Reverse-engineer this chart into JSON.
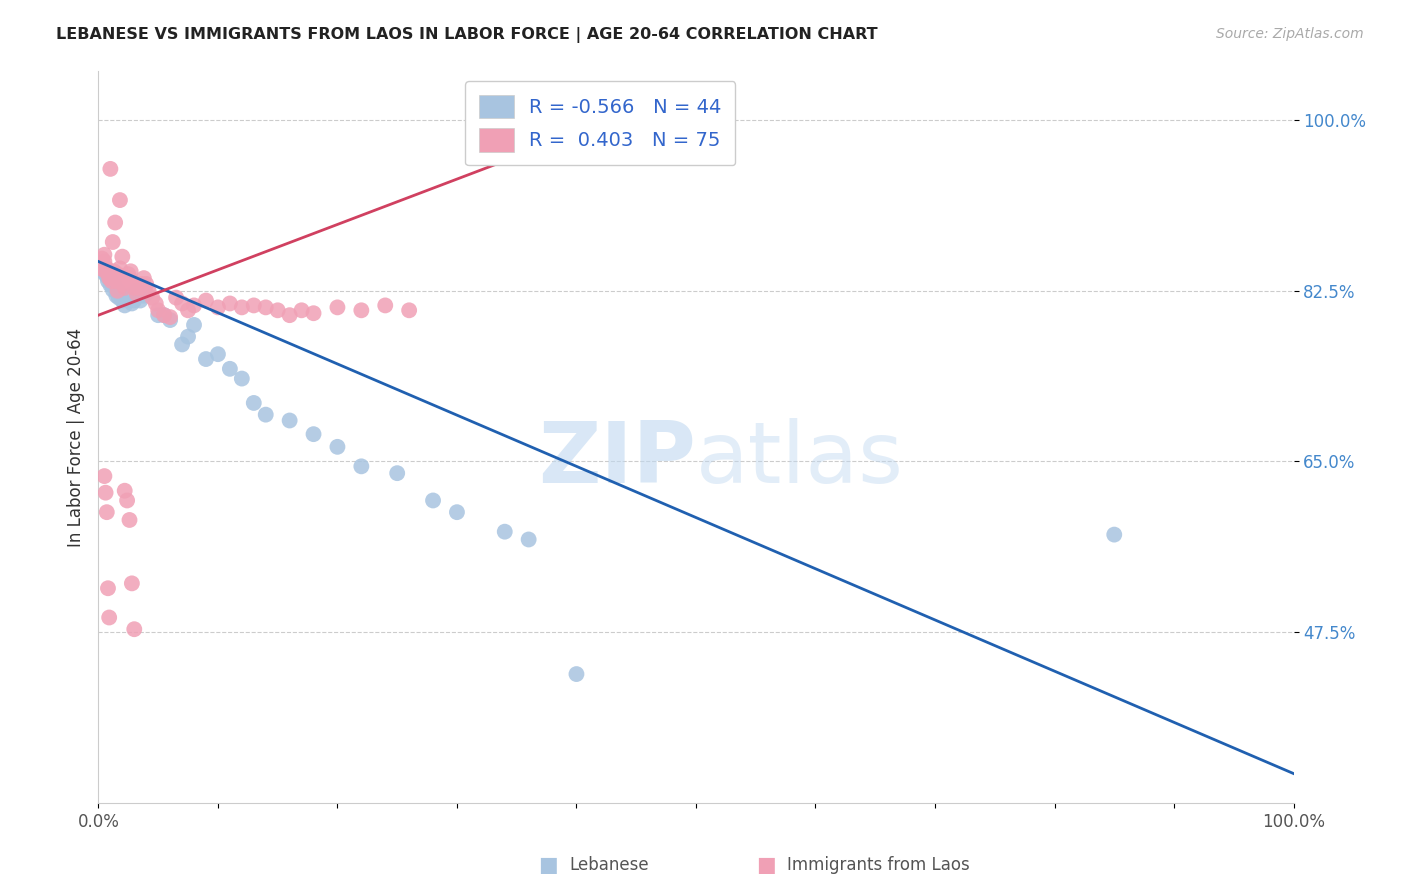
{
  "title": "LEBANESE VS IMMIGRANTS FROM LAOS IN LABOR FORCE | AGE 20-64 CORRELATION CHART",
  "source": "Source: ZipAtlas.com",
  "ylabel": "In Labor Force | Age 20-64",
  "xlim": [
    0.0,
    1.0
  ],
  "ylim": [
    0.3,
    1.05
  ],
  "ytick_vals": [
    0.475,
    0.65,
    0.825,
    1.0
  ],
  "ytick_labels": [
    "47.5%",
    "65.0%",
    "82.5%",
    "100.0%"
  ],
  "xtick_vals": [
    0.0,
    0.1,
    0.2,
    0.3,
    0.4,
    0.5,
    0.6,
    0.7,
    0.8,
    0.9,
    1.0
  ],
  "xtick_labels": [
    "0.0%",
    "",
    "",
    "",
    "",
    "",
    "",
    "",
    "",
    "",
    "100.0%"
  ],
  "blue_R": -0.566,
  "blue_N": 44,
  "pink_R": 0.403,
  "pink_N": 75,
  "blue_color": "#a8c4e0",
  "pink_color": "#f0a0b5",
  "blue_line_color": "#2060b0",
  "pink_line_color": "#d04060",
  "legend_label_blue": "Lebanese",
  "legend_label_pink": "Immigrants from Laos",
  "watermark_zip": "ZIP",
  "watermark_atlas": "atlas",
  "blue_line_x": [
    0.0,
    1.0
  ],
  "blue_line_y": [
    0.855,
    0.33
  ],
  "pink_line_x": [
    0.0,
    0.43
  ],
  "pink_line_y": [
    0.8,
    1.0
  ],
  "blue_x": [
    0.003,
    0.005,
    0.007,
    0.008,
    0.01,
    0.01,
    0.012,
    0.013,
    0.015,
    0.016,
    0.017,
    0.018,
    0.02,
    0.022,
    0.025,
    0.028,
    0.03,
    0.032,
    0.035,
    0.038,
    0.04,
    0.05,
    0.055,
    0.06,
    0.07,
    0.075,
    0.08,
    0.09,
    0.1,
    0.11,
    0.12,
    0.13,
    0.14,
    0.16,
    0.18,
    0.2,
    0.22,
    0.25,
    0.28,
    0.3,
    0.34,
    0.36,
    0.85,
    0.4
  ],
  "blue_y": [
    0.848,
    0.843,
    0.84,
    0.835,
    0.838,
    0.831,
    0.826,
    0.832,
    0.82,
    0.825,
    0.818,
    0.822,
    0.815,
    0.81,
    0.82,
    0.812,
    0.815,
    0.825,
    0.815,
    0.82,
    0.822,
    0.8,
    0.8,
    0.795,
    0.77,
    0.778,
    0.79,
    0.755,
    0.76,
    0.745,
    0.735,
    0.71,
    0.698,
    0.692,
    0.678,
    0.665,
    0.645,
    0.638,
    0.61,
    0.598,
    0.578,
    0.57,
    0.575,
    0.432
  ],
  "pink_x": [
    0.002,
    0.003,
    0.004,
    0.005,
    0.005,
    0.006,
    0.007,
    0.008,
    0.009,
    0.01,
    0.01,
    0.011,
    0.012,
    0.013,
    0.014,
    0.015,
    0.016,
    0.017,
    0.018,
    0.019,
    0.02,
    0.021,
    0.022,
    0.023,
    0.024,
    0.025,
    0.026,
    0.027,
    0.028,
    0.03,
    0.032,
    0.034,
    0.036,
    0.038,
    0.04,
    0.042,
    0.045,
    0.048,
    0.05,
    0.055,
    0.06,
    0.065,
    0.07,
    0.075,
    0.08,
    0.09,
    0.1,
    0.11,
    0.12,
    0.13,
    0.14,
    0.15,
    0.16,
    0.17,
    0.18,
    0.2,
    0.22,
    0.24,
    0.26,
    0.01,
    0.012,
    0.014,
    0.016,
    0.018,
    0.02,
    0.022,
    0.024,
    0.026,
    0.028,
    0.03,
    0.005,
    0.006,
    0.007,
    0.008,
    0.009
  ],
  "pink_y": [
    0.848,
    0.858,
    0.852,
    0.855,
    0.862,
    0.845,
    0.848,
    0.845,
    0.838,
    0.842,
    0.838,
    0.835,
    0.838,
    0.845,
    0.84,
    0.835,
    0.842,
    0.838,
    0.848,
    0.84,
    0.836,
    0.832,
    0.828,
    0.835,
    0.838,
    0.842,
    0.838,
    0.845,
    0.835,
    0.828,
    0.822,
    0.828,
    0.832,
    0.838,
    0.832,
    0.825,
    0.818,
    0.812,
    0.805,
    0.8,
    0.798,
    0.818,
    0.812,
    0.805,
    0.81,
    0.815,
    0.808,
    0.812,
    0.808,
    0.81,
    0.808,
    0.805,
    0.8,
    0.805,
    0.802,
    0.808,
    0.805,
    0.81,
    0.805,
    0.95,
    0.875,
    0.895,
    0.825,
    0.918,
    0.86,
    0.62,
    0.61,
    0.59,
    0.525,
    0.478,
    0.635,
    0.618,
    0.598,
    0.52,
    0.49
  ]
}
